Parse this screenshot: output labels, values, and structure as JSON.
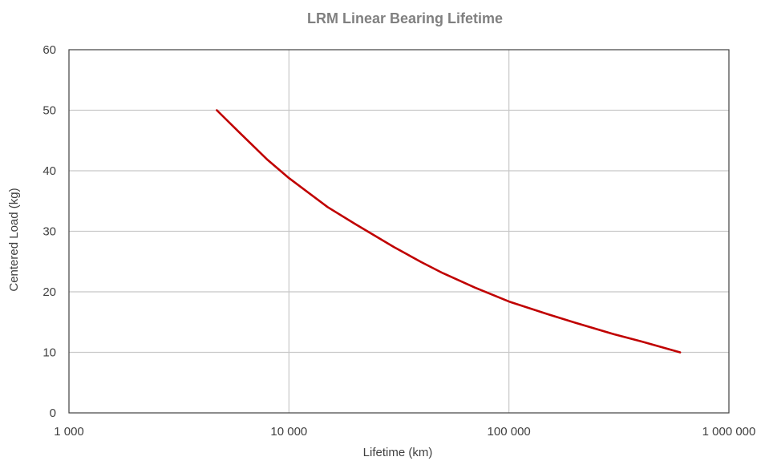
{
  "chart_data": {
    "type": "line",
    "title": "LRM Linear Bearing Lifetime",
    "xlabel": "Lifetime (km)",
    "ylabel": "Centered Load (kg)",
    "xscale": "log",
    "xlim": [
      1000,
      1000000
    ],
    "ylim": [
      0,
      60
    ],
    "x_ticks": [
      1000,
      10000,
      100000,
      1000000
    ],
    "x_tick_labels": [
      "1 000",
      "10 000",
      "100 000",
      "1 000 000"
    ],
    "y_ticks": [
      0,
      10,
      20,
      30,
      40,
      50,
      60
    ],
    "y_tick_labels": [
      "0",
      "10",
      "20",
      "30",
      "40",
      "50",
      "60"
    ],
    "grid": true,
    "legend": "none",
    "series": [
      {
        "color": "#c00000",
        "x": [
          4700,
          6000,
          8000,
          10000,
          15000,
          20000,
          30000,
          40000,
          50000,
          70000,
          100000,
          150000,
          200000,
          300000,
          400000,
          600000
        ],
        "y": [
          50,
          46.2,
          41.8,
          38.8,
          34.0,
          31.2,
          27.4,
          24.9,
          23.1,
          20.7,
          18.4,
          16.3,
          14.9,
          13.0,
          11.8,
          10.0
        ]
      }
    ],
    "colors": {
      "title": "#808080",
      "axis_text": "#404040",
      "grid": "#c8c8c8",
      "frame": "#404040",
      "series": "#c00000"
    }
  }
}
